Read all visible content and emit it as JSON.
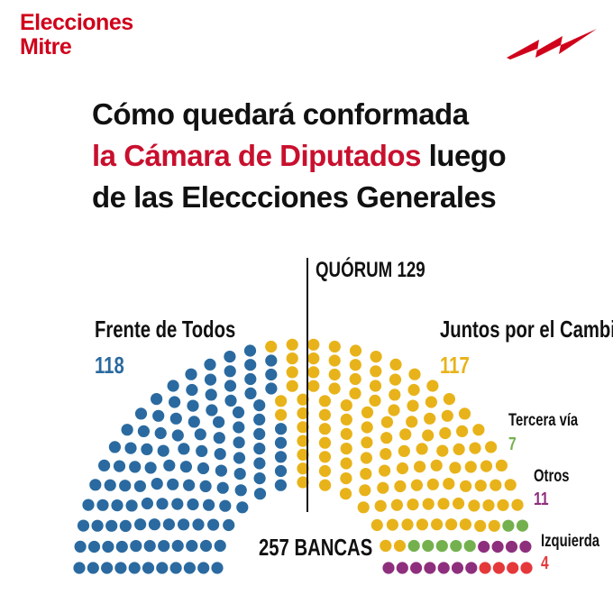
{
  "brand": {
    "line1": "Elecciones",
    "line2": "Mitre"
  },
  "logo_icon": "mitre-lightning-icon",
  "title": {
    "part1": "Cómo quedará conformada",
    "highlight": "la Cámara de Diputados",
    "part2": "luego",
    "part3": "de las Eleccciones Generales"
  },
  "colors": {
    "frente": "#2a6aa0",
    "juntos": "#e8b31a",
    "tercera": "#74b14e",
    "otros": "#8e2f7d",
    "izquierda": "#e5383b",
    "accent": "#c8102e"
  },
  "chart_data": {
    "type": "parliament",
    "quorum_label": "QUÓRUM 129",
    "total_label": "257 BANCAS",
    "series": [
      {
        "name": "Frente de Todos",
        "value": 118
      },
      {
        "name": "Juntos por el Cambio",
        "value": 117
      },
      {
        "name": "Tercera vía",
        "value": 7
      },
      {
        "name": "Otros",
        "value": 11
      },
      {
        "name": "Izquierda",
        "value": 4
      }
    ]
  }
}
